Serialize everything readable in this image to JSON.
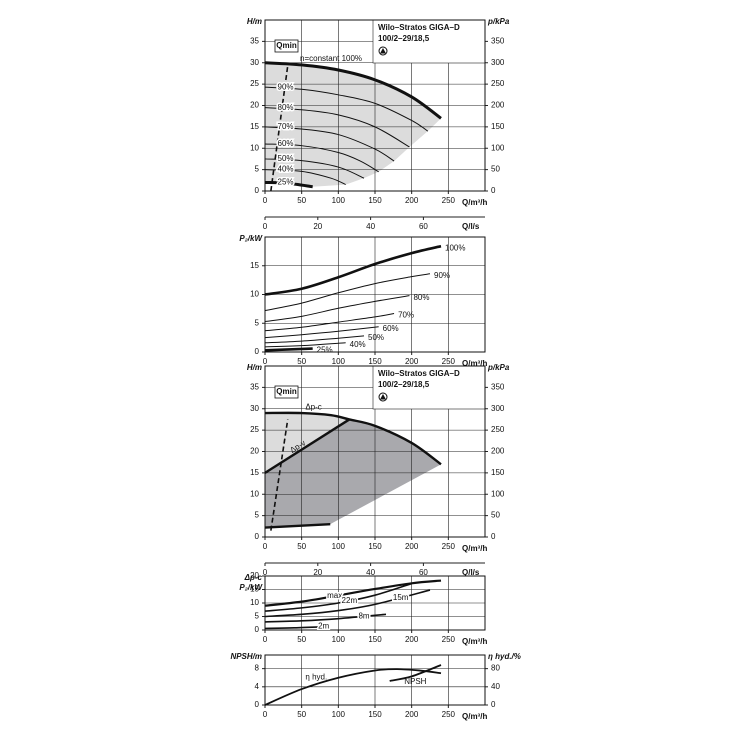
{
  "chart_data": [
    {
      "type": "line",
      "title": "Wilo–Stratos GIGA–D",
      "subtitle": "100/2–29/18,5",
      "ylabel": "H/m",
      "y2label": "p/kPa",
      "xlabel": "Q/m³/h",
      "x2label": "Q/l/s",
      "xlim": [
        0,
        300
      ],
      "xticks": [
        0,
        50,
        100,
        150,
        200,
        250
      ],
      "x2lim": [
        0,
        83.33
      ],
      "x2ticks": [
        0,
        20,
        40,
        60
      ],
      "ylim": [
        0,
        40
      ],
      "yticks": [
        0,
        5,
        10,
        15,
        20,
        25,
        30,
        35
      ],
      "y2lim": [
        0,
        400
      ],
      "y2ticks": [
        0,
        50,
        100,
        150,
        200,
        250,
        300,
        350
      ],
      "grid": true,
      "color": "#111",
      "area_color": "#dcdcdc",
      "annotation": "n=constant 100%",
      "qmin": {
        "label": "Qmin",
        "x": [
          8,
          31
        ],
        "values": [
          0,
          29.3
        ]
      },
      "series": [
        {
          "x": [
            0,
            50,
            100,
            150,
            200,
            240
          ],
          "values": [
            30,
            29.5,
            28.3,
            26,
            22,
            17
          ]
        },
        {
          "name": "90%",
          "x": [
            0,
            50,
            100,
            150,
            200,
            222
          ],
          "values": [
            24.3,
            23.8,
            22.5,
            20.5,
            16.5,
            14
          ]
        },
        {
          "name": "80%",
          "x": [
            0,
            50,
            100,
            150,
            197
          ],
          "values": [
            19.5,
            19,
            17.8,
            15,
            10.3
          ]
        },
        {
          "name": "70%",
          "x": [
            0,
            50,
            100,
            150,
            176
          ],
          "values": [
            15,
            14.5,
            13.2,
            9.8,
            7
          ]
        },
        {
          "name": "60%",
          "x": [
            0,
            50,
            100,
            130,
            155
          ],
          "values": [
            11,
            10.6,
            9,
            7,
            4.5
          ]
        },
        {
          "name": "50%",
          "x": [
            0,
            50,
            100,
            135
          ],
          "values": [
            7.5,
            7.1,
            5.6,
            3
          ]
        },
        {
          "name": "40%",
          "x": [
            0,
            50,
            90,
            110
          ],
          "values": [
            5,
            4.6,
            3,
            1.5
          ]
        },
        {
          "name": "25%",
          "x": [
            0,
            30,
            65
          ],
          "values": [
            2,
            1.8,
            1
          ]
        }
      ]
    },
    {
      "type": "line",
      "ylabel": "P₂/kW",
      "xlabel": "Q/m³/h",
      "xlim": [
        0,
        300
      ],
      "xticks": [
        0,
        50,
        100,
        150,
        200,
        250
      ],
      "ylim": [
        0,
        20
      ],
      "yticks": [
        0,
        5,
        10,
        15
      ],
      "grid": true,
      "color": "#111",
      "series": [
        {
          "name": "100%",
          "x": [
            0,
            50,
            100,
            150,
            200,
            240
          ],
          "values": [
            10,
            11,
            13,
            15.3,
            17.2,
            18.4
          ]
        },
        {
          "name": "90%",
          "x": [
            0,
            50,
            100,
            150,
            200,
            225
          ],
          "values": [
            7.2,
            8.5,
            10.3,
            11.9,
            13.1,
            13.6
          ]
        },
        {
          "name": "80%",
          "x": [
            0,
            50,
            100,
            150,
            197
          ],
          "values": [
            5.3,
            6.2,
            7.6,
            8.8,
            9.8
          ]
        },
        {
          "name": "70%",
          "x": [
            0,
            50,
            100,
            150,
            176
          ],
          "values": [
            3.7,
            4.3,
            5.2,
            6.1,
            6.7
          ]
        },
        {
          "name": "60%",
          "x": [
            0,
            50,
            100,
            155
          ],
          "values": [
            2.5,
            3,
            3.6,
            4.4
          ]
        },
        {
          "name": "50%",
          "x": [
            0,
            50,
            100,
            135
          ],
          "values": [
            1.6,
            1.9,
            2.4,
            2.8
          ]
        },
        {
          "name": "40%",
          "x": [
            0,
            50,
            110
          ],
          "values": [
            0.9,
            1.1,
            1.6
          ]
        },
        {
          "name": "25%",
          "x": [
            0,
            65
          ],
          "values": [
            0.3,
            0.6
          ]
        }
      ]
    },
    {
      "type": "line",
      "title": "Wilo–Stratos GIGA–D",
      "subtitle": "100/2–29/18,5",
      "ylabel": "H/m",
      "y2label": "p/kPa",
      "xlabel": "Q/m³/h",
      "x2label": "Q/l/s",
      "xlim": [
        0,
        300
      ],
      "xticks": [
        0,
        50,
        100,
        150,
        200,
        250
      ],
      "x2lim": [
        0,
        83.33
      ],
      "x2ticks": [
        0,
        20,
        40,
        60
      ],
      "ylim": [
        0,
        40
      ],
      "yticks": [
        0,
        5,
        10,
        15,
        20,
        25,
        30,
        35
      ],
      "y2lim": [
        0,
        400
      ],
      "y2ticks": [
        0,
        50,
        100,
        150,
        200,
        250,
        300,
        350
      ],
      "grid": true,
      "color": "#111",
      "area_color": "#dcdcdc",
      "area2_color": "#a9a9ad",
      "qmin": {
        "label": "Qmin",
        "x": [
          8,
          31
        ],
        "values": [
          1.5,
          27.5
        ]
      },
      "series": [
        {
          "name": "Δp-c",
          "x": [
            0,
            50,
            90,
            115,
            150,
            200,
            240
          ],
          "values": [
            29,
            29,
            28.5,
            27.5,
            26,
            22,
            17
          ]
        },
        {
          "name": "Δp-v",
          "x": [
            0,
            115
          ],
          "values": [
            15,
            27.5
          ]
        },
        {
          "x": [
            0,
            89
          ],
          "values": [
            2.2,
            3
          ]
        }
      ]
    },
    {
      "type": "line",
      "ylabel": [
        "Δp-c",
        "P₂/kW"
      ],
      "xlabel": "Q/m³/h",
      "xlim": [
        0,
        300
      ],
      "xticks": [
        0,
        50,
        100,
        150,
        200,
        250
      ],
      "ylim": [
        0,
        20
      ],
      "yticks": [
        0,
        5,
        10,
        15,
        20
      ],
      "grid": true,
      "color": "#111",
      "series": [
        {
          "name": "max",
          "x": [
            0,
            50,
            100,
            150,
            200,
            240
          ],
          "values": [
            9,
            10.5,
            12.8,
            15.2,
            17.3,
            18.3
          ]
        },
        {
          "name": "22m",
          "x": [
            0,
            50,
            100,
            150,
            200
          ],
          "values": [
            7,
            8.2,
            10,
            12.9,
            17.2
          ]
        },
        {
          "name": "15m",
          "x": [
            0,
            50,
            100,
            150,
            225
          ],
          "values": [
            5,
            5.8,
            7.2,
            9.5,
            14.8
          ]
        },
        {
          "name": "8m",
          "x": [
            0,
            50,
            100,
            165
          ],
          "values": [
            3,
            3.4,
            4.2,
            5.8
          ]
        },
        {
          "name": "2m",
          "x": [
            0,
            40,
            85
          ],
          "values": [
            0.6,
            0.8,
            1.3
          ]
        }
      ]
    },
    {
      "type": "line",
      "ylabel": "NPSH/m",
      "y2label": "η hyd./%",
      "xlabel": "Q/m³/h",
      "xlim": [
        0,
        300
      ],
      "xticks": [
        0,
        50,
        100,
        150,
        200,
        250
      ],
      "ylim": [
        0,
        11
      ],
      "yticks": [
        0,
        4,
        8
      ],
      "y2lim": [
        0,
        110
      ],
      "y2ticks": [
        0,
        40,
        80
      ],
      "grid": true,
      "color": "#111",
      "series": [
        {
          "name": "η hyd.",
          "axis": "y2",
          "x": [
            0,
            50,
            100,
            150,
            180,
            210,
            240
          ],
          "values": [
            0,
            35,
            60,
            76,
            79,
            76,
            70
          ]
        },
        {
          "name": "NPSH",
          "x": [
            170,
            200,
            240
          ],
          "values": [
            5.3,
            6.3,
            8.8
          ]
        }
      ]
    }
  ]
}
